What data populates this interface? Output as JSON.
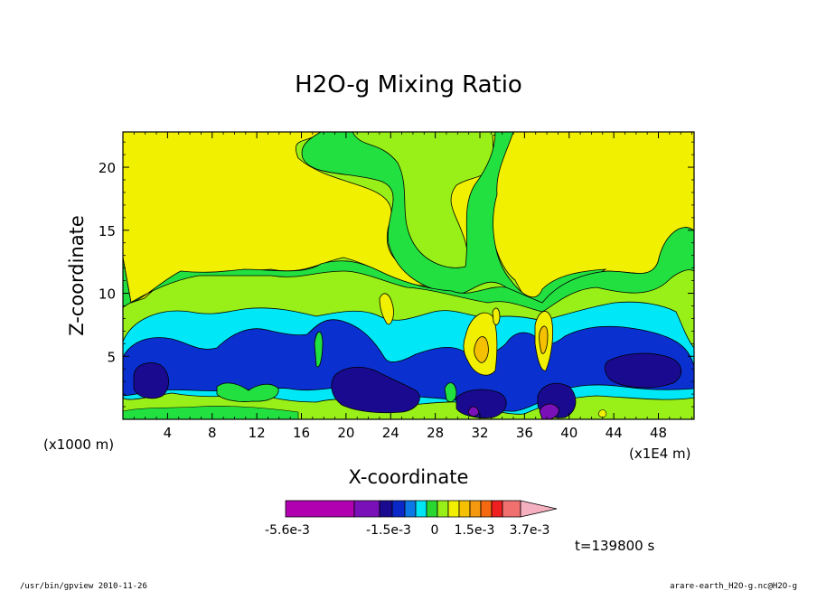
{
  "chart_data": {
    "type": "heatmap",
    "title": "H2O-g Mixing Ratio",
    "xlabel": "X-coordinate",
    "ylabel": "Z-coordinate",
    "x_unit_note": "(x1E4 m)",
    "y_unit_note": "(x1000 m)",
    "time_label": "t=139800 s",
    "footer_left": "/usr/bin/gpview  2010-11-26",
    "footer_right": "arare-earth_H2O-g.nc@H2O-g",
    "xlim": [
      0,
      51.2
    ],
    "ylim": [
      0,
      22.8
    ],
    "x_ticks": [
      4,
      8,
      12,
      16,
      20,
      24,
      28,
      32,
      36,
      40,
      44,
      48
    ],
    "y_ticks": [
      5,
      10,
      15,
      20
    ],
    "colorbar": {
      "colors": [
        "#b000b0",
        "#7a10b8",
        "#1a0a90",
        "#0a28c8",
        "#0b78e6",
        "#00e4f5",
        "#2ad630",
        "#98f018",
        "#f0f000",
        "#f5c000",
        "#f59a10",
        "#f56a10",
        "#f02020",
        "#f07070",
        "#f5b0c0"
      ],
      "tick_labels": [
        "-5.6e-3",
        "-1.5e-3",
        "0",
        "1.5e-3",
        "3.7e-3"
      ]
    },
    "level_colors": {
      "l1": "#22e040",
      "l2": "#00e8f8",
      "l3": "#0a30d0",
      "l4": "#1a0a90",
      "l5": "#7a10b8",
      "pos1": "#f0f000",
      "pos2": "#f5c000",
      "pos3": "#f59a10"
    }
  }
}
